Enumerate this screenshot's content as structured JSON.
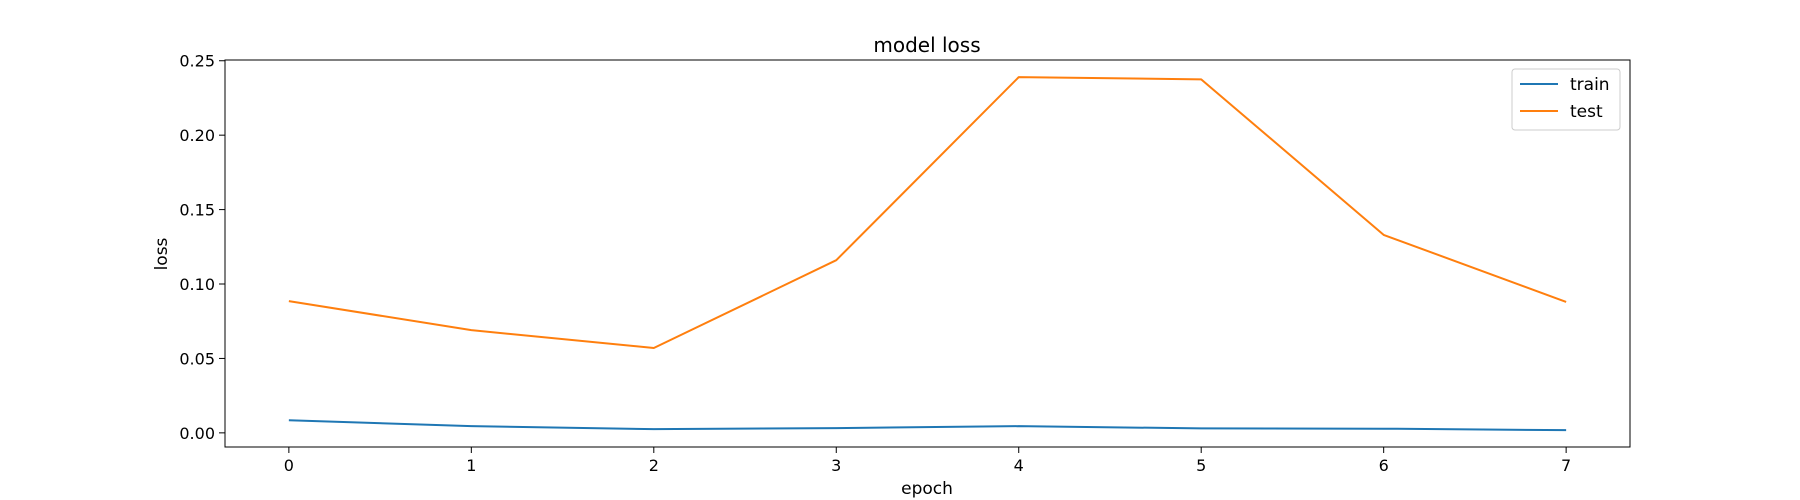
{
  "chart_data": {
    "type": "line",
    "title": "model loss",
    "xlabel": "epoch",
    "ylabel": "loss",
    "x": [
      0,
      1,
      2,
      3,
      4,
      5,
      6,
      7
    ],
    "xticks": [
      "0",
      "1",
      "2",
      "3",
      "4",
      "5",
      "6",
      "7"
    ],
    "yticks": [
      "0.00",
      "0.05",
      "0.10",
      "0.15",
      "0.20",
      "0.25"
    ],
    "xlim": [
      -0.35,
      7.35
    ],
    "ylim": [
      -0.0095,
      0.2505
    ],
    "grid": false,
    "legend_position": "top-right",
    "series": [
      {
        "name": "train",
        "color": "#1f77b4",
        "values": [
          0.0085,
          0.0045,
          0.0025,
          0.0032,
          0.0045,
          0.003,
          0.0028,
          0.0018
        ]
      },
      {
        "name": "test",
        "color": "#ff7f0e",
        "values": [
          0.0885,
          0.069,
          0.057,
          0.116,
          0.239,
          0.2375,
          0.133,
          0.088
        ]
      }
    ]
  }
}
